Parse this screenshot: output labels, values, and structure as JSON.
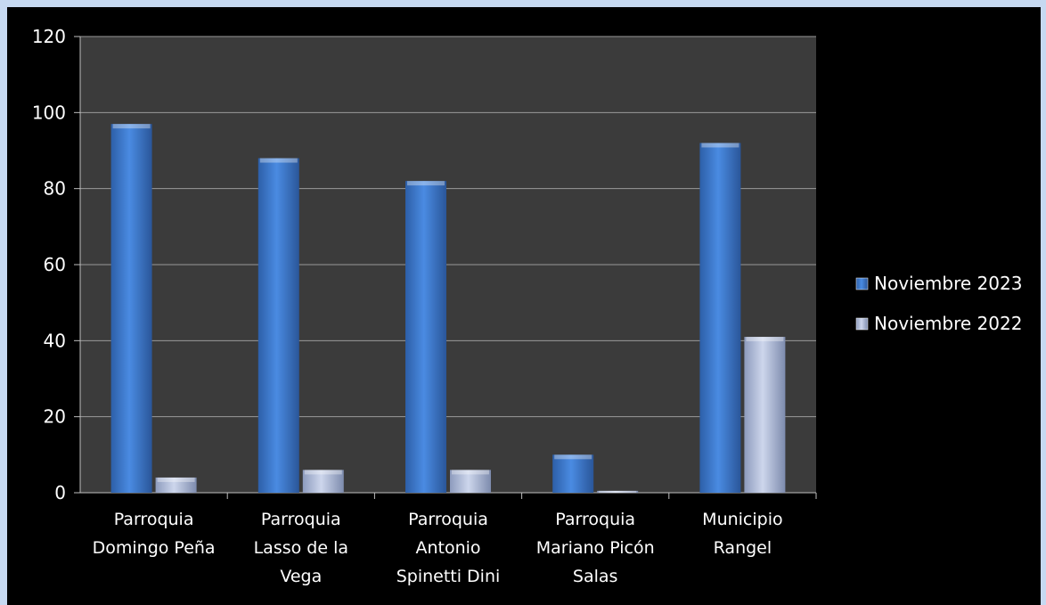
{
  "chart_data": {
    "type": "bar",
    "categories": [
      [
        "Parroquia",
        "Domingo Peña"
      ],
      [
        "Parroquia",
        "Lasso de la",
        "Vega"
      ],
      [
        "Parroquia",
        "Antonio",
        "Spinetti Dini"
      ],
      [
        "Parroquia",
        "Mariano Picón",
        "Salas"
      ],
      [
        "Municipio",
        "Rangel"
      ]
    ],
    "series": [
      {
        "name": "Noviembre 2023",
        "values": [
          97,
          88,
          82,
          10,
          92
        ],
        "color": "#3d7bd4"
      },
      {
        "name": "Noviembre 2022",
        "values": [
          4,
          6,
          6,
          0.5,
          41
        ],
        "color": "#b9c5e0"
      }
    ],
    "ylim": [
      0,
      120
    ],
    "yticks": [
      "0",
      "20",
      "40",
      "60",
      "80",
      "100",
      "120"
    ],
    "grid": true,
    "legend": "right",
    "colors": {
      "page_background": "#c6d9f1",
      "chart_background": "#000000",
      "plot_background": "#3b3b3b",
      "gridline": "#9a9a9a"
    }
  }
}
